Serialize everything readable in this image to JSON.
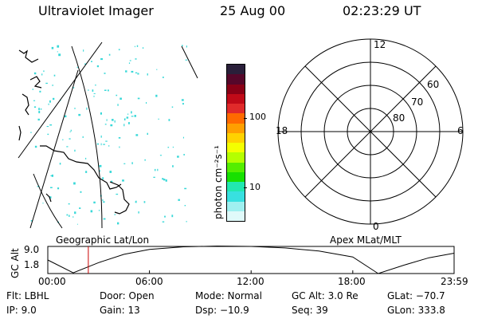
{
  "header": {
    "instrument": "Ultraviolet Imager",
    "date": "25 Aug 00",
    "time": "02:23:29 UT"
  },
  "colorbar": {
    "unit_label": "photon cm⁻²s⁻¹",
    "ticks": [
      "100",
      "10"
    ]
  },
  "polar_plot": {
    "mlt_labels": {
      "top": "12",
      "bottom": "0",
      "left": "18",
      "right": "6"
    },
    "lat_labels": [
      "60",
      "70",
      "80"
    ]
  },
  "panel_labels": {
    "left": "Geographic Lat/Lon",
    "right": "Apex MLat/MLT"
  },
  "altitude_plot": {
    "ylabel": "GC Alt",
    "yticks": [
      "9.0",
      "1.8"
    ],
    "xticks": [
      "00:00",
      "06:00",
      "12:00",
      "18:00",
      "23:59"
    ],
    "marker_time": "02:23:29",
    "chart_data": {
      "type": "line",
      "x_hours": [
        0,
        1.5,
        3,
        4.5,
        6,
        8,
        10,
        12,
        14,
        16,
        18,
        19.5,
        21,
        22.5,
        23.98
      ],
      "y_re": [
        5.4,
        2.0,
        4.7,
        6.9,
        8.2,
        8.9,
        9.1,
        9.0,
        8.6,
        7.8,
        6.2,
        1.8,
        4.0,
        6.0,
        7.2
      ],
      "ylim": [
        1.8,
        9.0
      ],
      "xlim": [
        0,
        23.98
      ]
    }
  },
  "info": {
    "row1": {
      "flt": "Flt: LBHL",
      "door": "Door: Open",
      "mode": "Mode: Normal",
      "gcalt": "GC Alt: 3.0 Re",
      "glat": "GLat: −70.7"
    },
    "row2": {
      "ip": "IP:  9.0",
      "gain": "Gain: 13",
      "dsp": "Dsp:  −10.9",
      "seq": "Seq: 39",
      "glon": "GLon: 333.8"
    }
  },
  "colors": {
    "colorbar": [
      "#2a1f3a",
      "#56072a",
      "#8a0016",
      "#c00a18",
      "#e02a2a",
      "#ff6a00",
      "#ff9f00",
      "#ffd200",
      "#f4ff00",
      "#b5ff00",
      "#55ee00",
      "#17e000",
      "#22e8b0",
      "#38e0e0",
      "#9ff0f0",
      "#e0fafa"
    ],
    "marker": "#cc0000",
    "speckle": "#38d8d8"
  }
}
